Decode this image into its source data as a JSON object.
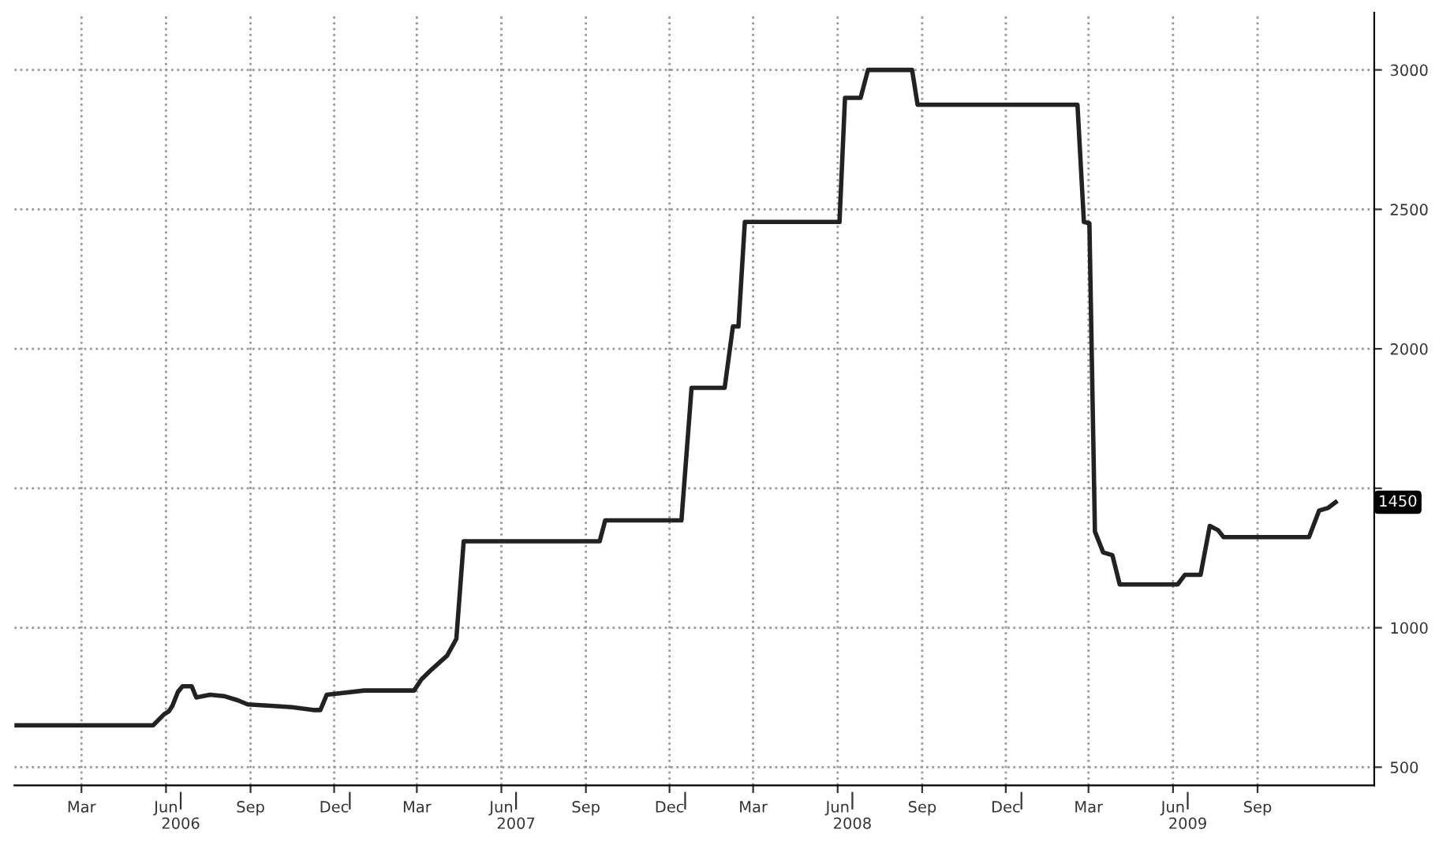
{
  "chart_data": {
    "type": "line",
    "x": [
      "2006-01-01",
      "2006-06-01",
      "2006-06-13",
      "2006-06-18",
      "2006-06-22",
      "2006-06-28",
      "2006-07-03",
      "2006-07-13",
      "2006-07-18",
      "2006-08-02",
      "2006-08-17",
      "2006-09-01",
      "2006-09-12",
      "2006-10-07",
      "2006-10-30",
      "2006-11-22",
      "2006-11-30",
      "2006-12-07",
      "2007-01-17",
      "2007-03-12",
      "2007-03-20",
      "2007-03-31",
      "2007-04-17",
      "2007-04-27",
      "2007-05-05",
      "2007-09-30",
      "2007-10-06",
      "2007-12-28",
      "2008-01-08",
      "2008-02-13",
      "2008-02-22",
      "2008-02-28",
      "2008-03-06",
      "2008-06-17",
      "2008-06-23",
      "2008-07-10",
      "2008-07-18",
      "2008-09-04",
      "2008-09-10",
      "2009-03-03",
      "2009-03-10",
      "2009-03-16",
      "2009-03-22",
      "2009-03-31",
      "2009-04-10",
      "2009-04-18",
      "2009-06-20",
      "2009-06-28",
      "2009-07-15",
      "2009-07-25",
      "2009-08-03",
      "2009-08-09",
      "2009-11-10",
      "2009-11-21",
      "2009-12-01",
      "2009-12-09"
    ],
    "series": [
      {
        "color": "#222222",
        "values": [
          650,
          650,
          690,
          700,
          720,
          770,
          790,
          790,
          750,
          760,
          755,
          740,
          725,
          720,
          715,
          705,
          705,
          760,
          775,
          775,
          815,
          850,
          900,
          960,
          1310,
          1310,
          1385,
          1385,
          1860,
          1860,
          2080,
          2080,
          2455,
          2455,
          2900,
          2900,
          3000,
          3000,
          2875,
          2875,
          2455,
          2450,
          1345,
          1270,
          1260,
          1155,
          1155,
          1190,
          1190,
          1365,
          1350,
          1325,
          1325,
          1420,
          1430,
          1450
        ]
      }
    ],
    "xlim": [
      "2006-01-01",
      "2010-01-20"
    ],
    "xticks": [
      {
        "value": "2006-03-15",
        "label": "Mar"
      },
      {
        "value": "2006-06-15",
        "label": "Jun"
      },
      {
        "value": "2006-09-15",
        "label": "Sep"
      },
      {
        "value": "2006-12-15",
        "label": "Dec"
      },
      {
        "value": "2007-03-15",
        "label": "Mar"
      },
      {
        "value": "2007-06-15",
        "label": "Jun"
      },
      {
        "value": "2007-09-15",
        "label": "Sep"
      },
      {
        "value": "2007-12-15",
        "label": "Dec"
      },
      {
        "value": "2008-03-15",
        "label": "Mar"
      },
      {
        "value": "2008-06-15",
        "label": "Jun"
      },
      {
        "value": "2008-09-15",
        "label": "Sep"
      },
      {
        "value": "2008-12-15",
        "label": "Dec"
      },
      {
        "value": "2009-03-15",
        "label": "Mar"
      },
      {
        "value": "2009-06-15",
        "label": "Jun"
      },
      {
        "value": "2009-09-15",
        "label": "Sep"
      }
    ],
    "x2ticks": [
      {
        "value": "2006-07-01",
        "label": "2006"
      },
      {
        "value": "2007-01-01",
        "label": null
      },
      {
        "value": "2007-07-01",
        "label": "2007"
      },
      {
        "value": "2008-01-01",
        "label": null
      },
      {
        "value": "2008-07-01",
        "label": "2008"
      },
      {
        "value": "2009-01-01",
        "label": null
      },
      {
        "value": "2009-07-01",
        "label": "2009"
      }
    ],
    "x2lim": [
      "2006-01-01",
      "2010-01-20"
    ],
    "ylim": [
      435,
      3205
    ],
    "yticks": [
      500,
      1000,
      {
        "value": 1500,
        "label": null
      },
      2000,
      2500,
      3000
    ],
    "annotations": [
      {
        "text": "1450",
        "x": "2009-12-09",
        "y": 1450
      }
    ],
    "grid": true,
    "line_style": "solid",
    "marker": "none"
  }
}
